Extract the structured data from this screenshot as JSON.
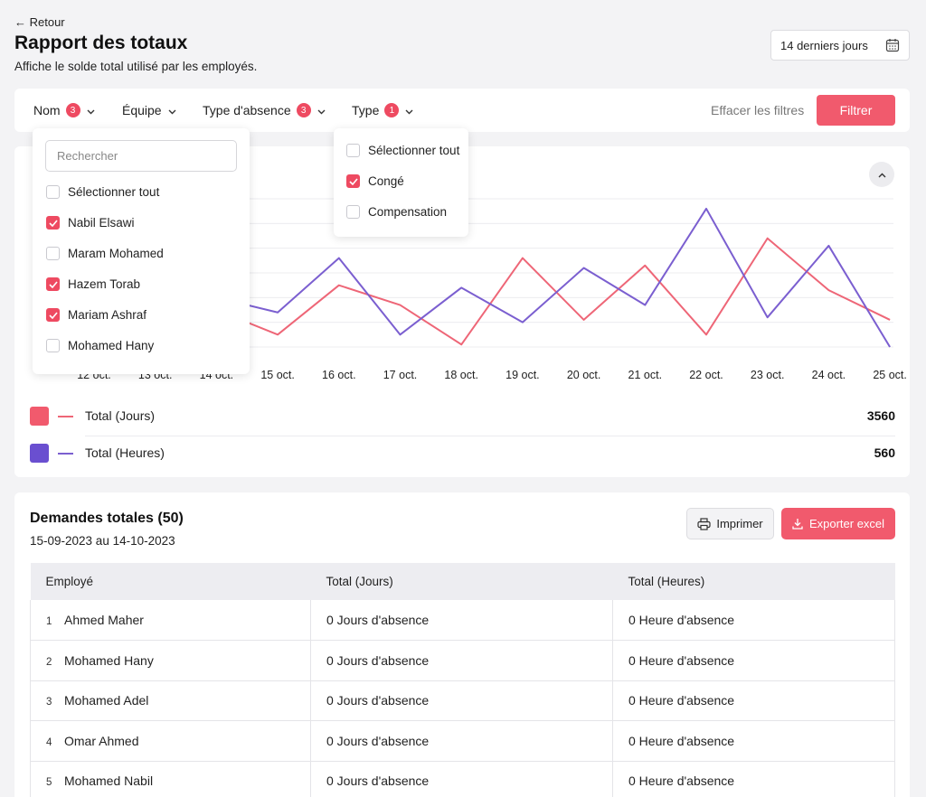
{
  "header": {
    "back_label": "← Retour",
    "title": "Rapport des totaux",
    "subtitle": "Affiche le solde total utilisé par les employés.",
    "date_range_label": "14 derniers jours"
  },
  "filters": {
    "items": [
      {
        "label": "Nom",
        "badge": "3"
      },
      {
        "label": "Équipe",
        "badge": ""
      },
      {
        "label": "Type d'absence",
        "badge": "3"
      },
      {
        "label": "Type",
        "badge": "1"
      }
    ],
    "clear_label": "Effacer les filtres",
    "apply_label": "Filtrer"
  },
  "name_dropdown": {
    "search_placeholder": "Rechercher",
    "select_all": "Sélectionner tout",
    "options": [
      {
        "label": "Nabil Elsawi",
        "checked": true
      },
      {
        "label": "Maram Mohamed",
        "checked": false
      },
      {
        "label": "Hazem Torab",
        "checked": true
      },
      {
        "label": "Mariam Ashraf",
        "checked": true
      },
      {
        "label": "Mohamed Hany",
        "checked": false
      }
    ]
  },
  "type_dropdown": {
    "select_all": "Sélectionner tout",
    "options": [
      {
        "label": "Congé",
        "checked": true
      },
      {
        "label": "Compensation",
        "checked": false
      }
    ]
  },
  "chart_data": {
    "type": "line",
    "categories": [
      "12 oct.",
      "13 oct.",
      "14 oct.",
      "15 oct.",
      "16 oct.",
      "17 oct.",
      "18 oct.",
      "19 oct.",
      "20 oct.",
      "21 oct.",
      "22 oct.",
      "23 oct.",
      "24 oct.",
      "25 oct."
    ],
    "series": [
      {
        "name": "Total (Jours)",
        "color": "#ee6677",
        "values": [
          1.6,
          1.4,
          1.5,
          0.5,
          2.5,
          1.7,
          0.1,
          3.6,
          1.1,
          3.3,
          0.5,
          4.4,
          2.3,
          1.1
        ]
      },
      {
        "name": "Total (Heures)",
        "color": "#7b5fd0",
        "values": [
          1.9,
          2.5,
          2.0,
          1.4,
          3.6,
          0.5,
          2.4,
          1.0,
          3.2,
          1.7,
          5.6,
          1.2,
          4.1,
          0.0
        ]
      }
    ],
    "ylim": [
      0,
      6
    ],
    "grid": true,
    "legend_position": "bottom"
  },
  "legend": [
    {
      "label": "Total (Jours)",
      "value": "3560",
      "color": "#f15a6d"
    },
    {
      "label": "Total (Heures)",
      "value": "560",
      "color": "#6a4fd0"
    }
  ],
  "requests": {
    "title": "Demandes totales (50)",
    "range": "15-09-2023 au 14-10-2023",
    "print_label": "Imprimer",
    "export_label": "Exporter excel",
    "columns": [
      "Employé",
      "Total (Jours)",
      "Total (Heures)"
    ],
    "rows": [
      {
        "num": "1",
        "name": "Ahmed Maher",
        "days": "0 Jours d'absence",
        "hours": "0 Heure d'absence"
      },
      {
        "num": "2",
        "name": "Mohamed Hany",
        "days": "0 Jours d'absence",
        "hours": "0 Heure d'absence"
      },
      {
        "num": "3",
        "name": "Mohamed Adel",
        "days": "0 Jours d'absence",
        "hours": "0 Heure d'absence"
      },
      {
        "num": "4",
        "name": "Omar Ahmed",
        "days": "0 Jours d'absence",
        "hours": "0 Heure d'absence"
      },
      {
        "num": "5",
        "name": "Mohamed Nabil",
        "days": "0 Jours d'absence",
        "hours": "0 Heure d'absence"
      }
    ]
  }
}
